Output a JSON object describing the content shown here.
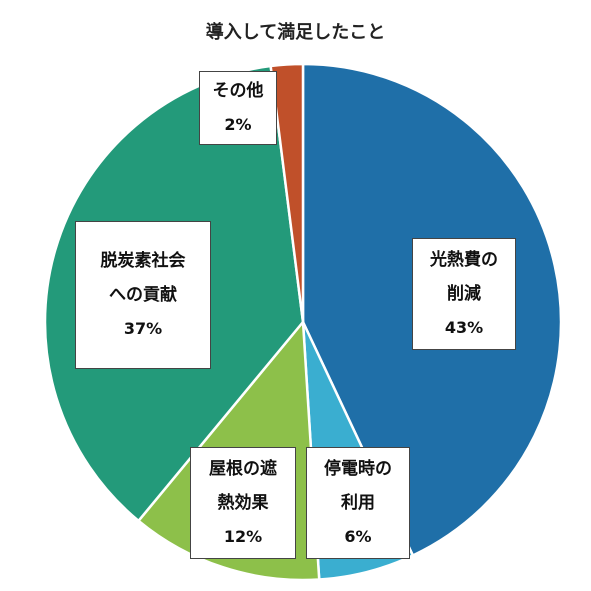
{
  "chart_data": {
    "type": "pie",
    "title": "導入して満足したこと",
    "start_angle_deg": 0,
    "direction": "clockwise",
    "slices": [
      {
        "label": [
          "光熱費の",
          "削減"
        ],
        "value": 43,
        "value_label": "43%",
        "color": "#1f6fa8"
      },
      {
        "label": [
          "停電時の",
          "利用"
        ],
        "value": 6,
        "value_label": "6%",
        "color": "#3aaed0"
      },
      {
        "label": [
          "屋根の遮",
          "熱効果"
        ],
        "value": 12,
        "value_label": "12%",
        "color": "#8dc04a"
      },
      {
        "label": [
          "脱炭素社会",
          "への貢献"
        ],
        "value": 37,
        "value_label": "37%",
        "color": "#239a7a"
      },
      {
        "label": [
          "その他"
        ],
        "value": 2,
        "value_label": "2%",
        "color": "#c0502a"
      }
    ]
  }
}
